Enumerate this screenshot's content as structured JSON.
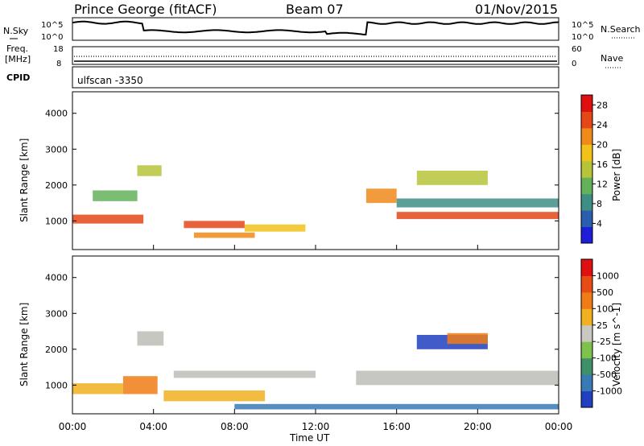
{
  "header": {
    "station": "Prince George (fitACF)",
    "beam": "Beam 07",
    "date": "01/Nov/2015"
  },
  "nsky_panel": {
    "left_label": "N.Sky",
    "left_ticks": [
      "10^5",
      "10^0"
    ],
    "right_ticks": [
      "10^5",
      "10^0"
    ],
    "right_label": "N.Search"
  },
  "freq_panel": {
    "left_label_1": "Freq.",
    "left_label_2": "[MHz]",
    "left_ticks": [
      "18",
      "8"
    ],
    "right_ticks": [
      "60",
      "0"
    ],
    "right_label": "Nave"
  },
  "cpid": {
    "label": "CPID",
    "value": "ulfscan -3350"
  },
  "colors": {
    "power_scale": [
      "#1e1ed8",
      "#2a5fb0",
      "#3f8e86",
      "#63b25a",
      "#b7c43a",
      "#f2c21a",
      "#f08a1a",
      "#e44818",
      "#e01010"
    ],
    "velocity_scale": [
      "#2040c0",
      "#3a7ab4",
      "#3f8f6a",
      "#7ec24c",
      "#c8c8c0",
      "#f0b020",
      "#f07c18",
      "#e84c16",
      "#e01010"
    ],
    "ground_scatter": "#bdbdb6"
  },
  "chart_data": [
    {
      "type": "heatmap",
      "title": "",
      "xlabel": "Time UT",
      "ylabel": "Slant Range [km]",
      "x_ticks": [
        "00:00",
        "04:00",
        "08:00",
        "12:00",
        "16:00",
        "20:00",
        "00:00"
      ],
      "y_ticks": [
        "1000",
        "2000",
        "3000",
        "4000"
      ],
      "ylim": [
        200,
        4600
      ],
      "colorbar": {
        "label": "Power [dB]",
        "ticks": [
          "4",
          "8",
          "12",
          "16",
          "20",
          "24",
          "28"
        ],
        "range": [
          0,
          30
        ]
      },
      "echo_regions": [
        {
          "t_start": 0.0,
          "t_end": 3.5,
          "range_center": 1050,
          "range_width": 250,
          "power": 24
        },
        {
          "t_start": 1.0,
          "t_end": 3.2,
          "range_center": 1700,
          "range_width": 300,
          "power": 10
        },
        {
          "t_start": 3.2,
          "t_end": 4.4,
          "range_center": 2400,
          "range_width": 300,
          "power": 14
        },
        {
          "t_start": 5.5,
          "t_end": 8.5,
          "range_center": 900,
          "range_width": 200,
          "power": 24
        },
        {
          "t_start": 6.0,
          "t_end": 9.0,
          "range_center": 600,
          "range_width": 150,
          "power": 22
        },
        {
          "t_start": 8.5,
          "t_end": 11.5,
          "range_center": 800,
          "range_width": 200,
          "power": 18
        },
        {
          "t_start": 14.5,
          "t_end": 16.0,
          "range_center": 1700,
          "range_width": 400,
          "power": 20
        },
        {
          "t_start": 16.0,
          "t_end": 24.0,
          "range_center": 1150,
          "range_width": 200,
          "power": 26
        },
        {
          "t_start": 16.0,
          "t_end": 24.0,
          "range_center": 1500,
          "range_width": 250,
          "power": 8
        },
        {
          "t_start": 17.0,
          "t_end": 20.5,
          "range_center": 2200,
          "range_width": 400,
          "power": 14
        }
      ]
    },
    {
      "type": "heatmap",
      "title": "",
      "xlabel": "Time UT",
      "ylabel": "Slant Range [km]",
      "x_ticks": [
        "00:00",
        "04:00",
        "08:00",
        "12:00",
        "16:00",
        "20:00",
        "00:00"
      ],
      "y_ticks": [
        "1000",
        "2000",
        "3000",
        "4000"
      ],
      "ylim": [
        200,
        4600
      ],
      "colorbar": {
        "label": "Velocity [m s^-1]",
        "ticks": [
          "1000",
          "500",
          "100",
          "25",
          "-25",
          "-100",
          "-500",
          "-1000"
        ],
        "range": [
          -1000,
          1000
        ]
      },
      "echo_regions": [
        {
          "t_start": 0.0,
          "t_end": 2.5,
          "range_center": 900,
          "range_width": 300,
          "velocity": -150
        },
        {
          "t_start": 2.5,
          "t_end": 4.2,
          "range_center": 1000,
          "range_width": 500,
          "velocity": -500
        },
        {
          "t_start": 3.2,
          "t_end": 4.5,
          "range_center": 2300,
          "range_width": 400,
          "velocity": 0
        },
        {
          "t_start": 4.5,
          "t_end": 9.5,
          "range_center": 700,
          "range_width": 300,
          "velocity": -200
        },
        {
          "t_start": 5.0,
          "t_end": 12.0,
          "range_center": 1300,
          "range_width": 200,
          "velocity": 0
        },
        {
          "t_start": 8.0,
          "t_end": 24.0,
          "range_center": 400,
          "range_width": 150,
          "velocity": 120
        },
        {
          "t_start": 14.0,
          "t_end": 24.0,
          "range_center": 1200,
          "range_width": 400,
          "velocity": 0
        },
        {
          "t_start": 17.0,
          "t_end": 20.5,
          "range_center": 2200,
          "range_width": 400,
          "velocity": 600
        },
        {
          "t_start": 18.5,
          "t_end": 20.5,
          "range_center": 2300,
          "range_width": 300,
          "velocity": -700
        }
      ]
    }
  ]
}
